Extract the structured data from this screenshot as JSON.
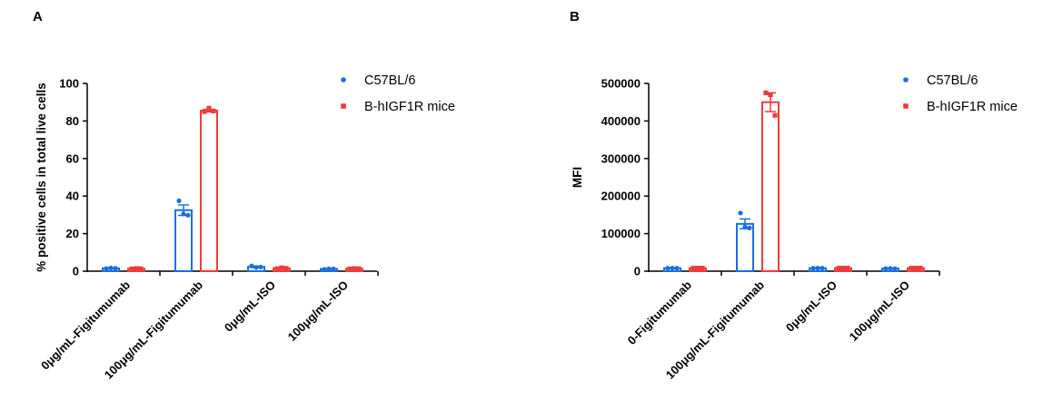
{
  "colors": {
    "c57": "#1a6fe0",
    "hmice": "#ee3b3b",
    "axis": "#000000"
  },
  "chart_data": [
    {
      "panel": "A",
      "type": "bar",
      "ylabel": "% positive cells in total live cells",
      "ylim": [
        0,
        100
      ],
      "yticks": [
        "0",
        "20",
        "40",
        "60",
        "80",
        "100"
      ],
      "ytick_values": [
        0,
        20,
        40,
        60,
        80,
        100
      ],
      "categories": [
        "0μg/mL-Figitumumab",
        "100μg/mL-Figitumumab",
        "0μg/mL-ISO",
        "100μg/mL-ISO"
      ],
      "series": [
        {
          "name": "C57BL/6",
          "color": "#1a6fe0",
          "values": [
            1.5,
            32.5,
            2.3,
            1.2
          ],
          "errors": [
            0.3,
            2.8,
            0.4,
            0.2
          ],
          "points": [
            [
              1.4,
              1.7,
              1.5
            ],
            [
              37.5,
              30.5,
              29.8
            ],
            [
              2.8,
              2.0,
              2.2
            ],
            [
              1.0,
              1.3,
              1.2
            ]
          ]
        },
        {
          "name": "B-hIGF1R mice",
          "color": "#ee3b3b",
          "values": [
            1.3,
            85.5,
            1.5,
            1.3
          ],
          "errors": [
            0.2,
            0.7,
            0.3,
            0.2
          ],
          "points": [
            [
              1.2,
              1.4,
              1.3
            ],
            [
              85.0,
              86.8,
              85.3
            ],
            [
              1.3,
              1.8,
              1.5
            ],
            [
              1.2,
              1.4,
              1.3
            ]
          ]
        }
      ]
    },
    {
      "panel": "B",
      "type": "bar",
      "ylabel": "MFI",
      "ylim": [
        0,
        500000
      ],
      "yticks": [
        "0",
        "100000",
        "200000",
        "300000",
        "400000",
        "500000"
      ],
      "ytick_values": [
        0,
        100000,
        200000,
        300000,
        400000,
        500000
      ],
      "categories": [
        "0-Figitumumab",
        "100μg/mL-Figitumumab",
        "0μg/mL-ISO",
        "100μg/mL-ISO"
      ],
      "series": [
        {
          "name": "C57BL/6",
          "color": "#1a6fe0",
          "values": [
            8000,
            126000,
            8000,
            7000
          ],
          "errors": [
            500,
            13000,
            500,
            500
          ],
          "points": [
            [
              7800,
              8200,
              8000
            ],
            [
              155000,
              118000,
              115000
            ],
            [
              7800,
              8200,
              8000
            ],
            [
              7000,
              7200,
              6800
            ]
          ]
        },
        {
          "name": "B-hIGF1R mice",
          "color": "#ee3b3b",
          "values": [
            8000,
            450000,
            8000,
            8000
          ],
          "errors": [
            500,
            25000,
            500,
            500
          ],
          "points": [
            [
              7800,
              8200,
              8000
            ],
            [
              475000,
              470000,
              415000
            ],
            [
              7800,
              8200,
              8000
            ],
            [
              7800,
              8200,
              8000
            ]
          ]
        }
      ]
    }
  ]
}
